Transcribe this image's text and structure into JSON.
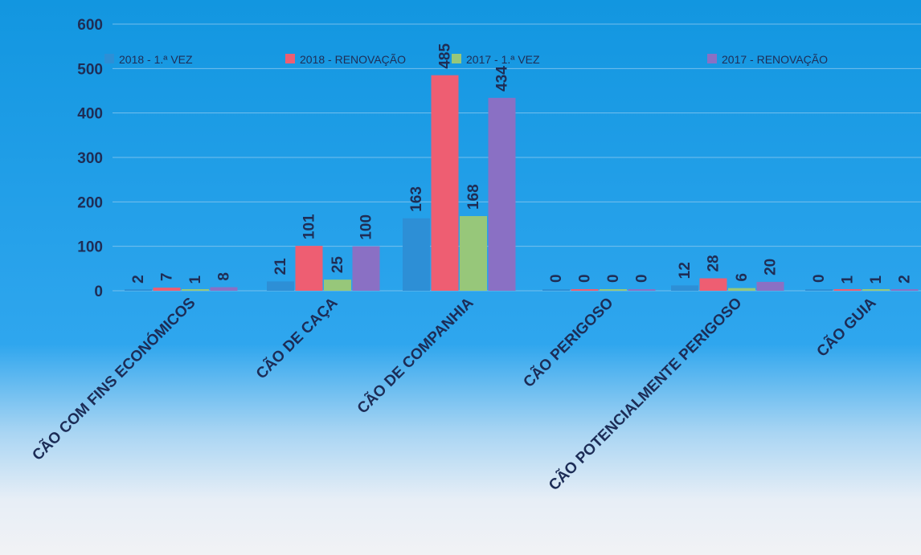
{
  "chart_data": {
    "type": "bar",
    "categories": [
      "CÃO COM FINS ECONÓMICOS",
      "CÃO DE CAÇA",
      "CÃO DE COMPANHIA",
      "CÃO PERIGOSO",
      "CÃO POTENCIALMENTE PERIGOSO",
      "CÃO GUIA"
    ],
    "series": [
      {
        "name": "2018 - 1.ª VEZ",
        "color": "#2d8fd6",
        "values": [
          2,
          21,
          163,
          0,
          12,
          0
        ]
      },
      {
        "name": "2018 - RENOVAÇÃO",
        "color": "#ee5e72",
        "values": [
          7,
          101,
          485,
          0,
          28,
          1
        ]
      },
      {
        "name": "2017 - 1.ª VEZ",
        "color": "#97c77a",
        "values": [
          1,
          25,
          168,
          0,
          6,
          1
        ]
      },
      {
        "name": "2017 - RENOVAÇÃO",
        "color": "#8a70c4",
        "values": [
          8,
          100,
          434,
          0,
          20,
          2
        ]
      }
    ],
    "yticks": [
      "0",
      "100",
      "200",
      "300",
      "400",
      "500",
      "600"
    ],
    "ylim": [
      0,
      600
    ],
    "grid": true,
    "legend_position": "top",
    "title": "",
    "xlabel": "",
    "ylabel": ""
  }
}
